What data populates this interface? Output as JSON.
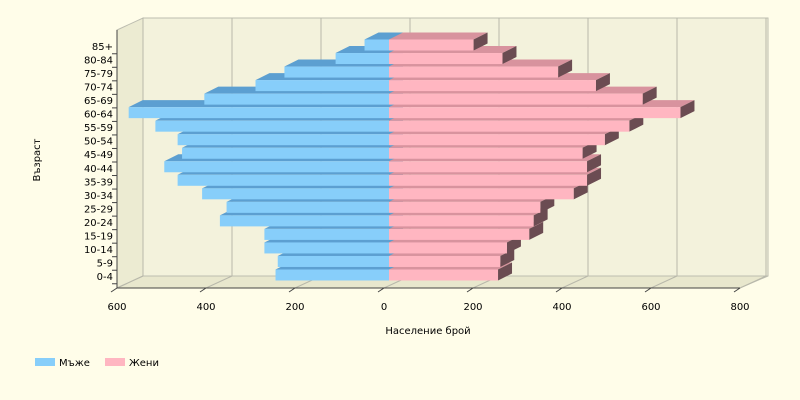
{
  "chart_data": {
    "type": "pyramid3d",
    "x_label": "Население брой",
    "y_label": "Възраст",
    "categories": [
      "0-4",
      "5-9",
      "10-14",
      "15-19",
      "20-24",
      "25-29",
      "30-34",
      "35-39",
      "40-44",
      "45-49",
      "50-54",
      "55-59",
      "60-64",
      "65-69",
      "70-74",
      "75-79",
      "80-84",
      "85+"
    ],
    "series": [
      {
        "name": "Мъже",
        "color": "#87cefa",
        "top_color": "#5c9fd1",
        "side_color": "#3f6f95",
        "values": [
          -255,
          -250,
          -280,
          -280,
          -380,
          -365,
          -420,
          -475,
          -505,
          -465,
          -475,
          -525,
          -585,
          -415,
          -300,
          -235,
          -120,
          -55
        ]
      },
      {
        "name": "Жени",
        "color": "#ffb6c1",
        "top_color": "#d8939e",
        "side_color": "#6b4c52",
        "values": [
          245,
          250,
          265,
          315,
          325,
          340,
          415,
          445,
          445,
          435,
          485,
          540,
          655,
          570,
          465,
          380,
          255,
          190
        ]
      }
    ],
    "xlim": [
      -600,
      800
    ],
    "xticks": [
      {
        "value": -600,
        "label": "600"
      },
      {
        "value": -400,
        "label": "400"
      },
      {
        "value": -200,
        "label": "200"
      },
      0,
      200,
      400,
      600,
      800
    ],
    "grid": true
  }
}
